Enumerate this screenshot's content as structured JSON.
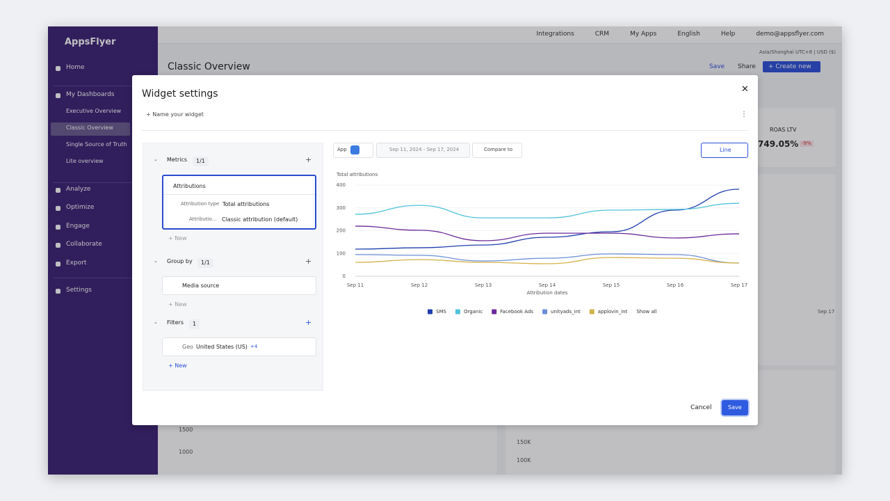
{
  "topbar": {
    "links": [
      "Integrations",
      "CRM",
      "My Apps",
      "English",
      "Help",
      "demo@appsflyer.com"
    ],
    "region": "Asia/Shanghai UTC+8 | USD ($)"
  },
  "sidebar": {
    "brand": "AppsFlyer",
    "items": [
      "Home",
      "My Dashboards",
      "Executive Overview",
      "Classic Overview",
      "Single Source of Truth",
      "Lite overview",
      "Analyze",
      "Optimize",
      "Engage",
      "Collaborate",
      "Export",
      "Settings"
    ]
  },
  "header": {
    "title": "Classic Overview",
    "save": "Save",
    "share": "Share",
    "create": "+ Create new"
  },
  "background": {
    "kpi_title": "ROAS LTV",
    "kpi_value": "749.05%",
    "kpi_change": "-9%",
    "x_label": "Sep 17",
    "ticks": [
      "1500",
      "1000",
      "150K",
      "100K"
    ]
  },
  "modal": {
    "title": "Widget settings",
    "name_widget": "+ Name your widget",
    "metrics": {
      "label": "Metrics",
      "count": "1/1",
      "item": "Attributions",
      "type_label": "Attribution type",
      "type_value": "Total attributions",
      "model_label": "Attributio...",
      "model_value": "Classic attribution (default)",
      "new": "+ New"
    },
    "group_by": {
      "label": "Group by",
      "count": "1/1",
      "item": "Media source",
      "new": "+ New"
    },
    "filters": {
      "label": "Filters",
      "count": "1",
      "geo_label": "Geo",
      "geo_value": "United States (US)",
      "more": "+4",
      "new": "+ New"
    },
    "toolbar": {
      "app": "App",
      "dates": "Sep 11, 2024 - Sep 17, 2024",
      "compare": "Compare to",
      "chart_type": "Line"
    },
    "show_all": "Show all",
    "cancel": "Cancel",
    "save": "Save"
  },
  "chart_data": {
    "type": "line",
    "y_label": "Total attributions",
    "x_label": "Attribution dates",
    "categories": [
      "Sep 11",
      "Sep 12",
      "Sep 13",
      "Sep 14",
      "Sep 15",
      "Sep 16",
      "Sep 17"
    ],
    "series": [
      {
        "name": "SMS",
        "color": "#1f3fae",
        "values": [
          119,
          125,
          137,
          171,
          195,
          290,
          382
        ]
      },
      {
        "name": "Organic",
        "color": "#4fc3d9",
        "values": [
          272,
          311,
          256,
          256,
          290,
          293,
          320
        ]
      },
      {
        "name": "Facebook Ads",
        "color": "#6a2a9a",
        "values": [
          220,
          202,
          156,
          189,
          189,
          168,
          186
        ]
      },
      {
        "name": "unityads_int",
        "color": "#6b8fd6",
        "values": [
          95,
          92,
          67,
          79,
          98,
          95,
          58
        ]
      },
      {
        "name": "applovin_int",
        "color": "#d4b24a",
        "values": [
          61,
          73,
          61,
          55,
          82,
          79,
          58
        ]
      }
    ],
    "ylim": [
      0,
      400
    ],
    "yticks": [
      0,
      100,
      200,
      300,
      400
    ],
    "grid": true,
    "legend": "bottom"
  }
}
